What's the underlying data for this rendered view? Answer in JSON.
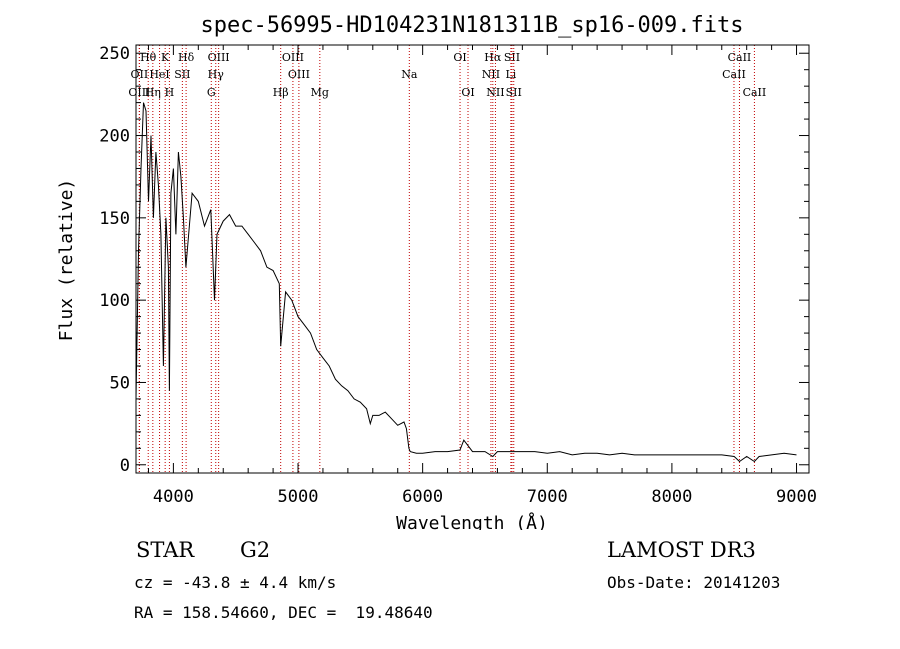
{
  "chart_data": {
    "type": "line",
    "title": "spec-56995-HD104231N181311B_sp16-009.fits",
    "xlabel": "Wavelength (Å)",
    "ylabel": "Flux (relative)",
    "xlim": [
      3700,
      9100
    ],
    "ylim": [
      -5,
      255
    ],
    "xticks": [
      4000,
      5000,
      6000,
      7000,
      8000,
      9000
    ],
    "yticks": [
      0,
      50,
      100,
      150,
      200,
      250
    ],
    "grid": false,
    "series": [
      {
        "name": "flux",
        "x": [
          3700,
          3720,
          3740,
          3760,
          3780,
          3800,
          3820,
          3840,
          3860,
          3880,
          3900,
          3920,
          3940,
          3960,
          3968,
          3980,
          4000,
          4020,
          4040,
          4060,
          4080,
          4100,
          4150,
          4200,
          4250,
          4300,
          4330,
          4350,
          4400,
          4450,
          4500,
          4550,
          4600,
          4650,
          4700,
          4750,
          4800,
          4850,
          4861,
          4900,
          4950,
          5000,
          5050,
          5100,
          5150,
          5200,
          5250,
          5300,
          5350,
          5400,
          5450,
          5500,
          5550,
          5580,
          5600,
          5650,
          5700,
          5750,
          5800,
          5850,
          5870,
          5890,
          5900,
          5950,
          6000,
          6100,
          6200,
          6300,
          6330,
          6400,
          6500,
          6563,
          6600,
          6700,
          6800,
          6900,
          7000,
          7100,
          7200,
          7300,
          7400,
          7500,
          7600,
          7700,
          7800,
          7900,
          8000,
          8100,
          8200,
          8300,
          8400,
          8500,
          8542,
          8600,
          8662,
          8700,
          8800,
          8900,
          9000
        ],
        "y": [
          40,
          130,
          180,
          220,
          215,
          160,
          200,
          150,
          190,
          170,
          140,
          60,
          150,
          120,
          45,
          165,
          180,
          140,
          190,
          175,
          150,
          120,
          165,
          160,
          145,
          155,
          100,
          140,
          148,
          152,
          145,
          145,
          140,
          135,
          130,
          120,
          118,
          110,
          72,
          105,
          100,
          90,
          85,
          80,
          70,
          65,
          60,
          52,
          48,
          45,
          40,
          38,
          34,
          25,
          30,
          30,
          32,
          28,
          24,
          26,
          22,
          10,
          8,
          7,
          7,
          8,
          8,
          9,
          15,
          8,
          8,
          5,
          8,
          8,
          8,
          8,
          7,
          8,
          6,
          7,
          7,
          6,
          7,
          6,
          6,
          6,
          6,
          6,
          6,
          6,
          6,
          5,
          2,
          5,
          2,
          5,
          6,
          7,
          6
        ]
      }
    ],
    "line_markers": [
      {
        "label": "Hθ",
        "x": 3798,
        "row": 1
      },
      {
        "label": "OII",
        "x": 3727,
        "row": 2
      },
      {
        "label": "OIII",
        "x": 3727,
        "row": 3
      },
      {
        "label": "K",
        "x": 3934,
        "row": 1
      },
      {
        "label": "HeI",
        "x": 3889,
        "row": 2
      },
      {
        "label": "Hη",
        "x": 3835,
        "row": 3
      },
      {
        "label": "H",
        "x": 3968,
        "row": 3
      },
      {
        "label": "SII",
        "x": 4072,
        "row": 2
      },
      {
        "label": "Hδ",
        "x": 4102,
        "row": 1
      },
      {
        "label": "OIII",
        "x": 4363,
        "row": 1
      },
      {
        "label": "Hγ",
        "x": 4340,
        "row": 2
      },
      {
        "label": "G",
        "x": 4304,
        "row": 3
      },
      {
        "label": "OIII",
        "x": 4959,
        "row": 1
      },
      {
        "label": "OIII",
        "x": 5007,
        "row": 2
      },
      {
        "label": "Hβ",
        "x": 4861,
        "row": 3
      },
      {
        "label": "Mg",
        "x": 5175,
        "row": 3
      },
      {
        "label": "Na",
        "x": 5893,
        "row": 2
      },
      {
        "label": "OI",
        "x": 6300,
        "row": 1
      },
      {
        "label": "OI",
        "x": 6364,
        "row": 3
      },
      {
        "label": "Hα",
        "x": 6563,
        "row": 1
      },
      {
        "label": "NII",
        "x": 6548,
        "row": 2
      },
      {
        "label": "NII",
        "x": 6584,
        "row": 3
      },
      {
        "label": "SII",
        "x": 6717,
        "row": 1
      },
      {
        "label": "Li",
        "x": 6708,
        "row": 2
      },
      {
        "label": "SII",
        "x": 6731,
        "row": 3
      },
      {
        "label": "CaII",
        "x": 8542,
        "row": 1
      },
      {
        "label": "CaII",
        "x": 8498,
        "row": 2
      },
      {
        "label": "CaII",
        "x": 8662,
        "row": 3
      }
    ]
  },
  "info": {
    "object_class": "STAR",
    "subclass": "G2",
    "survey": "LAMOST DR3",
    "redshift_text": "cz = -43.8 ± 4.4 km/s",
    "obs_date": "Obs-Date: 20141203",
    "coords_text": "RA = 158.54660, DEC =  19.48640"
  },
  "colors": {
    "spectrum": "#000000",
    "marker_line": "#c00000",
    "axis": "#000000"
  }
}
